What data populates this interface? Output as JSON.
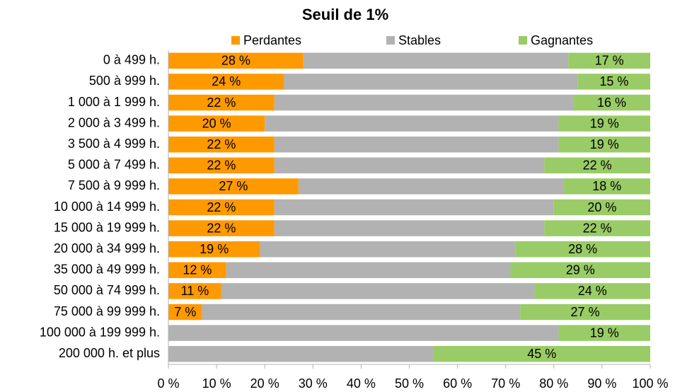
{
  "chart_data": {
    "type": "stacked-bar-horizontal",
    "title": "Seuil de 1%",
    "categories": [
      "0 à 499 h.",
      "500 à 999 h.",
      "1 000 à 1 999 h.",
      "2 000 à 3 499 h.",
      "3 500 à 4 999 h.",
      "5 000 à 7 499 h.",
      "7 500 à 9 999 h.",
      "10 000 à 14 999 h.",
      "15 000 à 19 999 h.",
      "20 000 à 34 999 h.",
      "35 000 à 49 999 h.",
      "50 000 à 74 999 h.",
      "75 000 à 99 999 h.",
      "100 000 à 199 999 h.",
      "200 000 h. et plus"
    ],
    "series": [
      {
        "name": "Perdantes",
        "color": "#ff9900",
        "values": [
          28,
          24,
          22,
          20,
          22,
          22,
          27,
          22,
          22,
          19,
          12,
          11,
          7,
          0,
          0
        ],
        "value_labels": [
          "28 %",
          "24 %",
          "22 %",
          "20 %",
          "22 %",
          "22 %",
          "27 %",
          "22 %",
          "22 %",
          "19 %",
          "12 %",
          "11 %",
          "7 %",
          null,
          null
        ]
      },
      {
        "name": "Stables",
        "color": "#b2b2b2",
        "values": [
          55,
          61,
          62,
          61,
          59,
          56,
          55,
          58,
          56,
          53,
          59,
          65,
          66,
          81,
          55
        ]
      },
      {
        "name": "Gagnantes",
        "color": "#99cc66",
        "values": [
          17,
          15,
          16,
          19,
          19,
          22,
          18,
          20,
          22,
          28,
          29,
          24,
          27,
          19,
          45
        ],
        "value_labels": [
          "17 %",
          "15 %",
          "16 %",
          "19 %",
          "19 %",
          "22 %",
          "18 %",
          "20 %",
          "22 %",
          "28 %",
          "29 %",
          "24 %",
          "27 %",
          "19 %",
          "45 %"
        ]
      }
    ],
    "xlim": [
      0,
      100
    ],
    "xticks": [
      {
        "value": 0,
        "label": "0 %"
      },
      {
        "value": 10,
        "label": "10 %"
      },
      {
        "value": 20,
        "label": "20 %"
      },
      {
        "value": 30,
        "label": "30 %"
      },
      {
        "value": 40,
        "label": "40 %"
      },
      {
        "value": 50,
        "label": "50 %"
      },
      {
        "value": 60,
        "label": "60 %"
      },
      {
        "value": 70,
        "label": "70 %"
      },
      {
        "value": 80,
        "label": "80 %"
      },
      {
        "value": 90,
        "label": "90 %"
      },
      {
        "value": 100,
        "label": "100 %"
      }
    ],
    "legend": "top"
  }
}
